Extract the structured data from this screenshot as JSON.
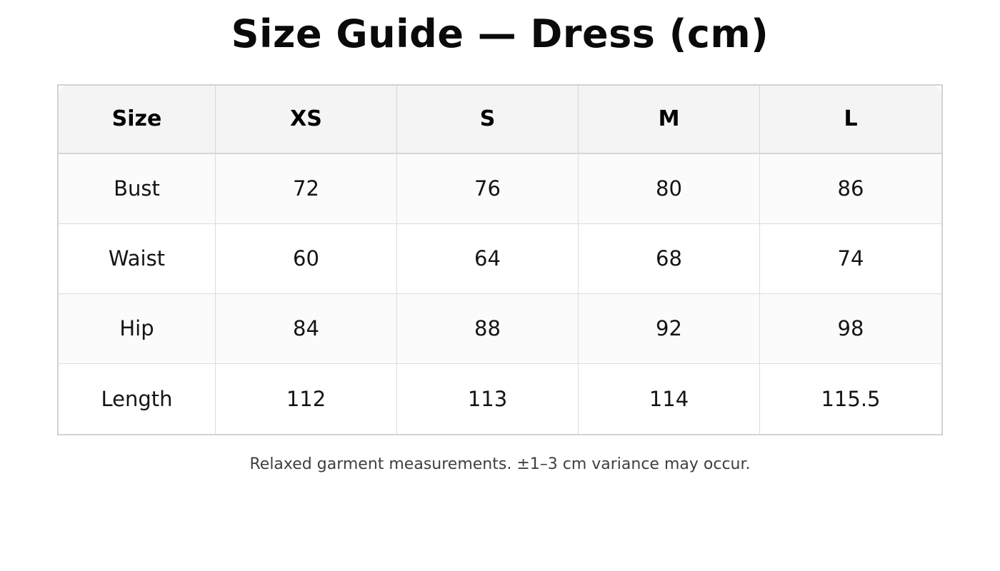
{
  "page": {
    "title": "Size Guide — Dress (cm)",
    "footnote": "Relaxed garment measurements. ±1–3 cm variance may occur."
  },
  "table": {
    "columns": [
      "Size",
      "XS",
      "S",
      "M",
      "L"
    ],
    "rows": [
      {
        "label": "Bust",
        "values": [
          "72",
          "76",
          "80",
          "86"
        ]
      },
      {
        "label": "Waist",
        "values": [
          "60",
          "64",
          "68",
          "74"
        ]
      },
      {
        "label": "Hip",
        "values": [
          "84",
          "88",
          "92",
          "98"
        ]
      },
      {
        "label": "Length",
        "values": [
          "112",
          "113",
          "114",
          "115.5"
        ]
      }
    ]
  },
  "colors": {
    "page_bg": "#ffffff",
    "title_color": "#0a0a0a",
    "header_bg": "#f4f4f4",
    "header_text": "#000000",
    "cell_text": "#141414",
    "stripe_bg": "#fbfbfb",
    "outer_border": "#d2d2d2",
    "divider": "#d6d6d6",
    "divider_light": "#dcdcdc",
    "footnote_color": "#3f3f3f"
  }
}
